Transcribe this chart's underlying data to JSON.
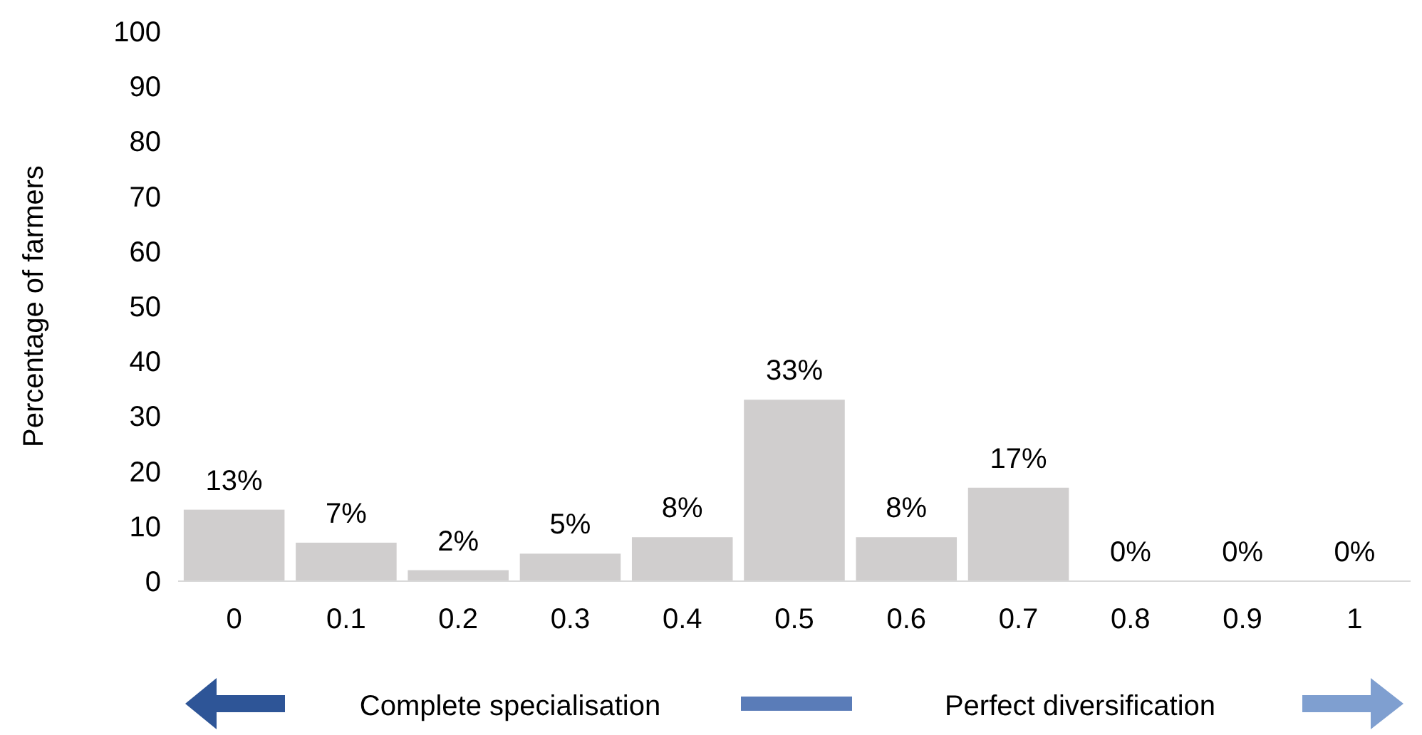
{
  "chart_data": {
    "type": "bar",
    "ylabel": "Percentage of farmers",
    "categories": [
      "0",
      "0.1",
      "0.2",
      "0.3",
      "0.4",
      "0.5",
      "0.6",
      "0.7",
      "0.8",
      "0.9",
      "1"
    ],
    "values": [
      13,
      7,
      2,
      5,
      8,
      33,
      8,
      17,
      0,
      0,
      0
    ],
    "value_labels": [
      "13%",
      "7%",
      "2%",
      "5%",
      "8%",
      "33%",
      "8%",
      "17%",
      "0%",
      "0%",
      "0%"
    ],
    "color": "#d0cece",
    "ylim": [
      0,
      100
    ],
    "yticks": [
      0,
      10,
      20,
      30,
      40,
      50,
      60,
      70,
      80,
      90,
      100
    ],
    "grid": false,
    "annotations": [
      "Complete specialisation",
      "Perfect diversification"
    ]
  }
}
